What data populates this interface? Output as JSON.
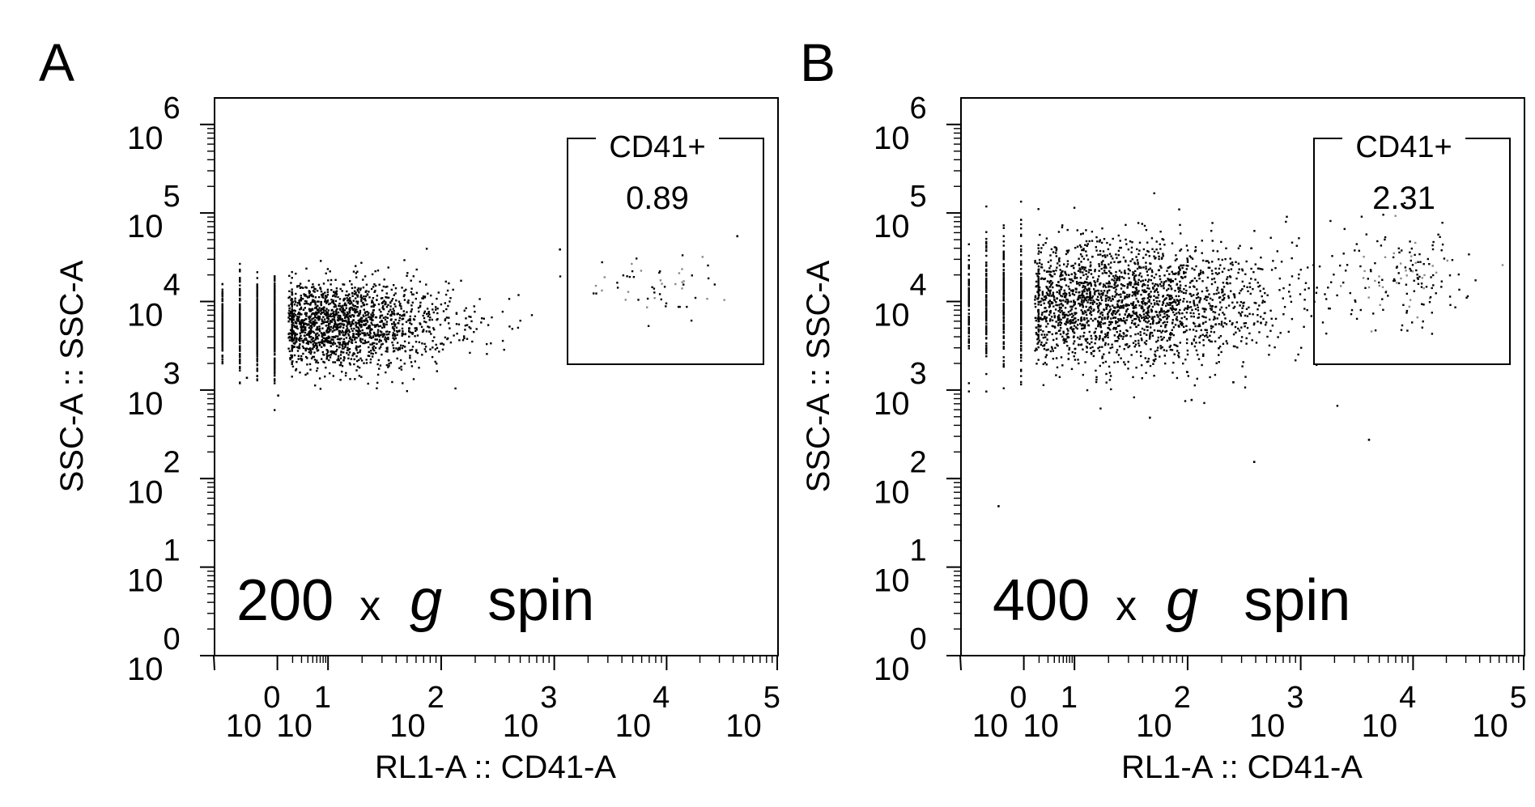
{
  "figure": {
    "background": "#ffffff",
    "ink": "#000000",
    "panels": [
      {
        "panel_label": "A",
        "annotation": {
          "number": "200",
          "x": "x",
          "g": "g",
          "word": "spin"
        },
        "gate": {
          "label": "CD41+",
          "value": "0.89"
        }
      },
      {
        "panel_label": "B",
        "annotation": {
          "number": "400",
          "x": "x",
          "g": "g",
          "word": "spin"
        },
        "gate": {
          "label": "CD41+",
          "value": "2.31"
        }
      }
    ]
  },
  "chart_data": [
    {
      "type": "scatter",
      "xlabel": "RL1-A :: CD41-A",
      "ylabel": "SSC-A :: SSC-A",
      "x_scale": "log",
      "y_scale": "log",
      "x_ticks": [
        "10^0",
        "10^1",
        "10^2",
        "10^3",
        "10^4",
        "10^5"
      ],
      "y_ticks": [
        "10^0",
        "10^1",
        "10^2",
        "10^3",
        "10^4",
        "10^5",
        "10^6"
      ],
      "xlim": [
        -0.4,
        5.0
      ],
      "ylim": [
        0,
        6.3
      ],
      "grid": false,
      "gate": {
        "name": "CD41+",
        "percent": 0.89,
        "x_range": [
          3.3,
          5.0
        ],
        "y_range": [
          3.2,
          5.6
        ]
      },
      "populations": [
        {
          "role": "main",
          "x_log_center": 0.55,
          "y_log_center": 3.75,
          "x_spread": 0.65,
          "y_spread": 0.25,
          "count": 2600
        },
        {
          "role": "gate",
          "x_log_center": 3.85,
          "y_log_center": 4.15,
          "x_spread": 0.3,
          "y_spread": 0.22,
          "count": 55
        },
        {
          "role": "outliers",
          "points": [
            [
              2.9,
              4.6
            ],
            [
              0.2,
              2.95
            ],
            [
              -0.1,
              3.15
            ],
            [
              4.6,
              4.75
            ]
          ]
        }
      ]
    },
    {
      "type": "scatter",
      "xlabel": "RL1-A :: CD41-A",
      "ylabel": "SSC-A :: SSC-A",
      "x_scale": "log",
      "y_scale": "log",
      "x_ticks": [
        "10^0",
        "10^1",
        "10^2",
        "10^3",
        "10^4",
        "10^5"
      ],
      "y_ticks": [
        "10^0",
        "10^1",
        "10^2",
        "10^3",
        "10^4",
        "10^5",
        "10^6"
      ],
      "xlim": [
        -0.4,
        5.0
      ],
      "ylim": [
        0,
        6.3
      ],
      "grid": false,
      "gate": {
        "name": "CD41+",
        "percent": 2.31,
        "x_range": [
          3.3,
          5.0
        ],
        "y_range": [
          3.2,
          5.6
        ]
      },
      "populations": [
        {
          "role": "main",
          "x_log_center": 0.9,
          "y_log_center": 4.0,
          "x_spread": 0.85,
          "y_spread": 0.35,
          "count": 2800
        },
        {
          "role": "gate",
          "x_log_center": 3.8,
          "y_log_center": 4.3,
          "x_spread": 0.35,
          "y_spread": 0.3,
          "count": 160
        },
        {
          "role": "outliers",
          "points": [
            [
              -0.05,
              1.7
            ],
            [
              1.4,
              2.7
            ],
            [
              2.4,
              2.2
            ],
            [
              3.5,
              2.45
            ],
            [
              1.8,
              2.9
            ],
            [
              2.2,
              3.1
            ]
          ]
        }
      ]
    }
  ]
}
